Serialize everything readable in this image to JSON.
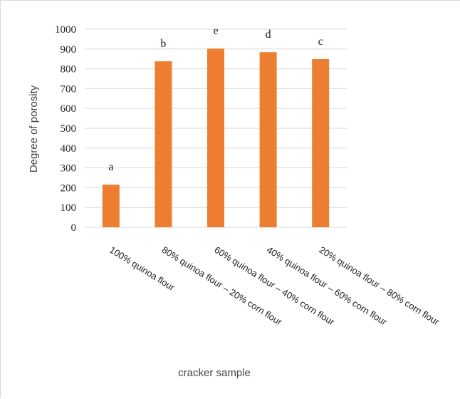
{
  "chart_data": {
    "type": "bar",
    "categories": [
      "100% quinoa flour",
      "80% quinoa flour – 20% corn flour",
      "60% quinoa flour – 40% corn flour",
      "40% quinoa flour – 60% corn flour",
      "20% quinoa flour – 80% corn flour"
    ],
    "values": [
      215,
      838,
      902,
      884,
      849
    ],
    "annotations": [
      "a",
      "b",
      "e",
      "d",
      "c"
    ],
    "xlabel": "cracker sample",
    "ylabel": "Degree of porosity",
    "ylim": [
      0,
      1000
    ],
    "yticks": [
      0,
      100,
      200,
      300,
      400,
      500,
      600,
      700,
      800,
      900,
      1000
    ],
    "grid": true,
    "legend": "none",
    "bar_color": "#ED7D31",
    "grid_color": "#d9d9d9"
  }
}
